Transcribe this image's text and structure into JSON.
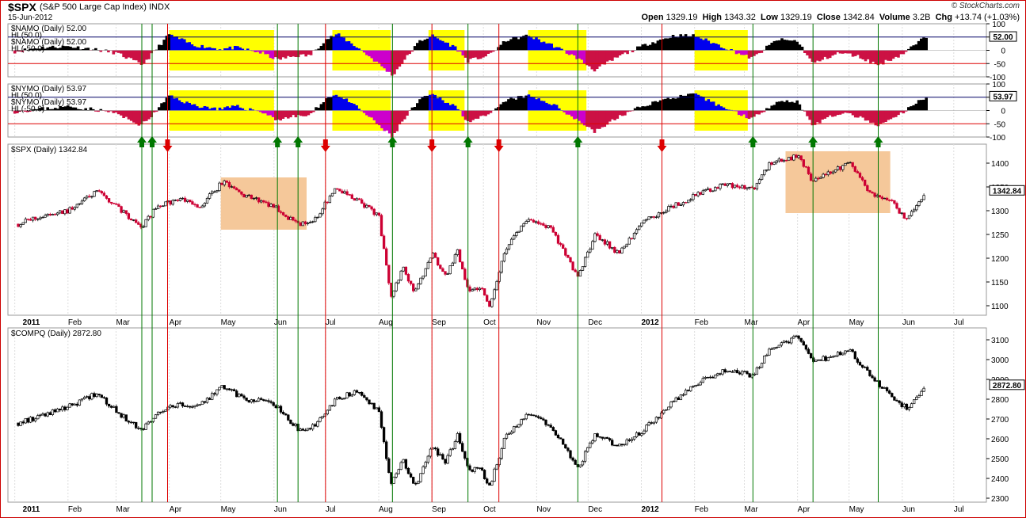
{
  "header": {
    "symbol": "$SPX",
    "symbol_name": "(S&P 500 Large Cap Index) INDX",
    "date": "15-Jun-2012",
    "open_label": "Open",
    "open": "1329.19",
    "high_label": "High",
    "high": "1343.32",
    "low_label": "Low",
    "low": "1329.19",
    "close_label": "Close",
    "close": "1342.84",
    "volume_label": "Volume",
    "volume": "3.2B",
    "chg_label": "Chg",
    "chg": "+13.74 (+1.03%)",
    "credit": "© StockCharts.com"
  },
  "colors": {
    "up": "#000000",
    "down": "#cc0033",
    "pos": "#000000",
    "neg": "#cc1144",
    "blue": "#0000ee",
    "magenta": "#cc00cc",
    "yellow": "#ffff00",
    "orange": "#f5c89a",
    "green": "#007700",
    "red": "#dd0000"
  },
  "timeline": {
    "months": [
      "2011",
      "Feb",
      "Mar",
      "Apr",
      "May",
      "Jun",
      "Jul",
      "Aug",
      "Sep",
      "Oct",
      "Nov",
      "Dec",
      "2012",
      "Feb",
      "Mar",
      "Apr",
      "May",
      "Jun",
      "Jul"
    ]
  },
  "chart_data": [
    {
      "type": "area",
      "title": "$NAMO (Daily) 52.00",
      "legend": [
        "$NAMO (Daily) 52.00",
        "HL(50.0)",
        "$NAMO (Daily) 52.00",
        "HL(-50.0)"
      ],
      "ylim": [
        -100,
        100
      ],
      "yticks": [
        "100",
        "50",
        "0",
        "-50",
        "-100"
      ],
      "last": "52.00",
      "hlines": [
        50,
        -50
      ],
      "series": [
        {
          "name": "$NAMO",
          "x": [
            "2011-01-01",
            "2011-01-15",
            "2011-02-01",
            "2011-02-15",
            "2011-03-01",
            "2011-03-08",
            "2011-03-16",
            "2011-03-22",
            "2011-04-01",
            "2011-04-15",
            "2011-05-01",
            "2011-05-10",
            "2011-05-25",
            "2011-06-03",
            "2011-06-15",
            "2011-06-22",
            "2011-07-01",
            "2011-07-08",
            "2011-07-20",
            "2011-08-01",
            "2011-08-09",
            "2011-08-15",
            "2011-08-25",
            "2011-09-01",
            "2011-09-15",
            "2011-09-22",
            "2011-10-04",
            "2011-10-15",
            "2011-10-27",
            "2011-11-10",
            "2011-11-25",
            "2011-12-05",
            "2011-12-20",
            "2012-01-05",
            "2012-01-20",
            "2012-02-01",
            "2012-02-15",
            "2012-03-01",
            "2012-03-06",
            "2012-03-20",
            "2012-04-01",
            "2012-04-10",
            "2012-04-25",
            "2012-05-05",
            "2012-05-18",
            "2012-06-01",
            "2012-06-15"
          ],
          "values": [
            -5,
            10,
            15,
            5,
            -10,
            -30,
            -55,
            -15,
            60,
            20,
            5,
            10,
            -10,
            -35,
            -20,
            -20,
            40,
            60,
            10,
            -50,
            -95,
            -45,
            35,
            55,
            10,
            -40,
            -20,
            40,
            55,
            20,
            -30,
            -75,
            -20,
            25,
            55,
            55,
            20,
            -20,
            -30,
            40,
            35,
            -50,
            -10,
            -20,
            -55,
            -15,
            52
          ]
        }
      ],
      "boxes": [
        [
          "2011-04-01",
          "2011-06-01"
        ],
        [
          "2011-07-05",
          "2011-08-08"
        ],
        [
          "2011-08-30",
          "2011-09-20"
        ],
        [
          "2011-10-27",
          "2011-11-30"
        ],
        [
          "2012-02-01",
          "2012-03-03"
        ]
      ]
    },
    {
      "type": "area",
      "title": "$NYMO (Daily) 53.97",
      "legend": [
        "$NYMO (Daily) 53.97",
        "HL(50.0)",
        "$NYMO (Daily) 53.97",
        "HL(-50.0)"
      ],
      "ylim": [
        -100,
        100
      ],
      "yticks": [
        "100",
        "50",
        "0",
        "-50",
        "-100"
      ],
      "last": "53.97",
      "hlines": [
        50,
        -50
      ],
      "series": [
        {
          "name": "$NYMO",
          "x": [
            "2011-01-01",
            "2011-01-15",
            "2011-02-01",
            "2011-02-15",
            "2011-03-01",
            "2011-03-08",
            "2011-03-16",
            "2011-03-22",
            "2011-04-01",
            "2011-04-15",
            "2011-05-01",
            "2011-05-10",
            "2011-05-25",
            "2011-06-03",
            "2011-06-15",
            "2011-06-22",
            "2011-07-01",
            "2011-07-08",
            "2011-07-20",
            "2011-08-01",
            "2011-08-09",
            "2011-08-15",
            "2011-08-25",
            "2011-09-01",
            "2011-09-15",
            "2011-09-22",
            "2011-10-04",
            "2011-10-15",
            "2011-10-27",
            "2011-11-10",
            "2011-11-25",
            "2011-12-05",
            "2011-12-20",
            "2012-01-05",
            "2012-01-20",
            "2012-02-01",
            "2012-02-15",
            "2012-03-01",
            "2012-03-06",
            "2012-03-20",
            "2012-04-01",
            "2012-04-10",
            "2012-04-25",
            "2012-05-05",
            "2012-05-18",
            "2012-06-01",
            "2012-06-15"
          ],
          "values": [
            -5,
            5,
            15,
            5,
            -10,
            -35,
            -55,
            -20,
            55,
            20,
            5,
            15,
            -5,
            -35,
            -20,
            -20,
            45,
            60,
            10,
            -55,
            -100,
            -40,
            40,
            60,
            15,
            -40,
            -20,
            40,
            55,
            25,
            -35,
            -80,
            -20,
            25,
            50,
            60,
            20,
            -20,
            -30,
            35,
            35,
            -55,
            -10,
            -20,
            -60,
            -10,
            54
          ]
        }
      ],
      "boxes": [
        [
          "2011-04-01",
          "2011-06-01"
        ],
        [
          "2011-07-05",
          "2011-08-08"
        ],
        [
          "2011-08-30",
          "2011-09-20"
        ],
        [
          "2011-10-27",
          "2011-11-30"
        ],
        [
          "2012-02-01",
          "2012-03-03"
        ]
      ]
    },
    {
      "type": "line",
      "title": "$SPX (Daily) 1342.84",
      "ylim": [
        1080,
        1440
      ],
      "yticks": [
        1400,
        1350,
        1300,
        1250,
        1200,
        1150,
        1100
      ],
      "last": "1342.84",
      "series": [
        {
          "name": "$SPX",
          "x": [
            "2011-01-03",
            "2011-01-18",
            "2011-02-01",
            "2011-02-18",
            "2011-03-01",
            "2011-03-16",
            "2011-03-25",
            "2011-04-08",
            "2011-04-18",
            "2011-05-02",
            "2011-05-16",
            "2011-06-01",
            "2011-06-15",
            "2011-06-24",
            "2011-07-07",
            "2011-07-20",
            "2011-08-01",
            "2011-08-08",
            "2011-08-15",
            "2011-08-22",
            "2011-09-01",
            "2011-09-09",
            "2011-09-16",
            "2011-09-22",
            "2011-09-30",
            "2011-10-04",
            "2011-10-14",
            "2011-10-27",
            "2011-11-10",
            "2011-11-25",
            "2011-12-05",
            "2011-12-19",
            "2012-01-03",
            "2012-01-20",
            "2012-02-06",
            "2012-02-20",
            "2012-03-06",
            "2012-03-16",
            "2012-04-02",
            "2012-04-10",
            "2012-04-20",
            "2012-05-01",
            "2012-05-15",
            "2012-05-25",
            "2012-06-04",
            "2012-06-15"
          ],
          "values": [
            1272,
            1290,
            1300,
            1340,
            1310,
            1265,
            1310,
            1325,
            1305,
            1360,
            1330,
            1310,
            1270,
            1275,
            1350,
            1320,
            1290,
            1120,
            1180,
            1125,
            1210,
            1160,
            1215,
            1135,
            1140,
            1095,
            1220,
            1285,
            1260,
            1160,
            1250,
            1210,
            1280,
            1310,
            1340,
            1355,
            1345,
            1400,
            1415,
            1360,
            1380,
            1400,
            1330,
            1320,
            1280,
            1342.84
          ]
        }
      ],
      "arrows_up": [
        "2011-03-16",
        "2011-03-22",
        "2011-06-03",
        "2011-06-15",
        "2011-08-09",
        "2011-09-22",
        "2011-11-25",
        "2012-03-06",
        "2012-04-10",
        "2012-05-18"
      ],
      "arrows_down": [
        "2011-03-31",
        "2011-07-01",
        "2011-09-01",
        "2011-10-10",
        "2012-01-13"
      ],
      "boxes": [
        [
          "2011-05-01",
          "2011-06-20",
          1260,
          1370
        ],
        [
          "2012-03-25",
          "2012-05-25",
          1295,
          1425
        ]
      ]
    },
    {
      "type": "line",
      "title": "$COMPQ (Daily) 2872.80",
      "ylim": [
        2280,
        3160
      ],
      "yticks": [
        3100,
        3000,
        2900,
        2800,
        2700,
        2600,
        2500,
        2400,
        2300
      ],
      "last": "2872.80",
      "series": [
        {
          "name": "$COMPQ",
          "x": [
            "2011-01-03",
            "2011-01-18",
            "2011-02-01",
            "2011-02-18",
            "2011-03-01",
            "2011-03-16",
            "2011-03-25",
            "2011-04-08",
            "2011-04-18",
            "2011-05-02",
            "2011-05-16",
            "2011-06-01",
            "2011-06-15",
            "2011-06-24",
            "2011-07-07",
            "2011-07-20",
            "2011-08-01",
            "2011-08-08",
            "2011-08-15",
            "2011-08-22",
            "2011-09-01",
            "2011-09-09",
            "2011-09-16",
            "2011-09-22",
            "2011-09-30",
            "2011-10-04",
            "2011-10-14",
            "2011-10-27",
            "2011-11-10",
            "2011-11-25",
            "2011-12-05",
            "2011-12-19",
            "2012-01-03",
            "2012-01-20",
            "2012-02-06",
            "2012-02-20",
            "2012-03-06",
            "2012-03-16",
            "2012-04-02",
            "2012-04-10",
            "2012-04-20",
            "2012-05-01",
            "2012-05-15",
            "2012-05-25",
            "2012-06-04",
            "2012-06-15"
          ],
          "values": [
            2680,
            2720,
            2760,
            2830,
            2740,
            2640,
            2730,
            2780,
            2760,
            2860,
            2800,
            2780,
            2650,
            2660,
            2800,
            2840,
            2740,
            2360,
            2500,
            2350,
            2560,
            2480,
            2620,
            2450,
            2440,
            2340,
            2620,
            2720,
            2660,
            2450,
            2620,
            2560,
            2650,
            2790,
            2900,
            2950,
            2920,
            3050,
            3120,
            3000,
            3010,
            3050,
            2900,
            2820,
            2750,
            2872.8
          ]
        }
      ]
    }
  ]
}
